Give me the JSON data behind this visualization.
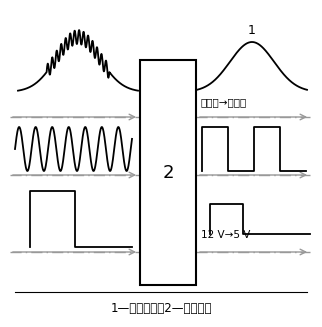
{
  "caption": "1—除去杂波；2—输入回路",
  "label_1": "1",
  "label_2": "2",
  "text_sine_to_square": "正弦波→矩形波",
  "text_12v_to_5v": "12 V→5 V",
  "bg_color": "#ffffff",
  "line_color": "#000000",
  "dash_color": "#999999"
}
